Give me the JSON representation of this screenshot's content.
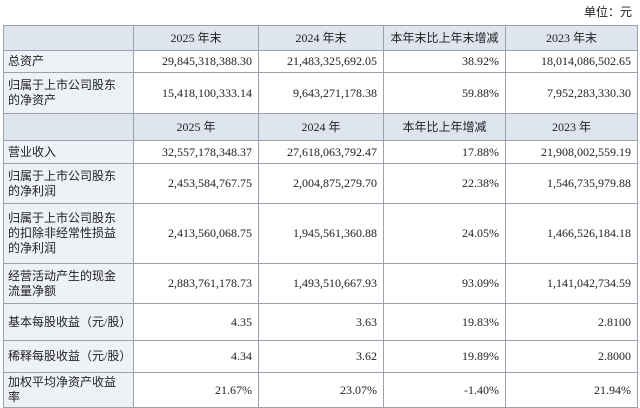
{
  "unit": "单位：元",
  "sections": [
    {
      "header": [
        "2025 年末",
        "2024 年末",
        "本年末比上年末增减",
        "2023 年末"
      ],
      "rows": [
        [
          "总资产",
          "29,845,318,388.30",
          "21,483,325,692.05",
          "38.92%",
          "18,014,086,502.65"
        ],
        [
          "归属于上市公司股东的净资产",
          "15,418,100,333.14",
          "9,643,271,178.38",
          "59.88%",
          "7,952,283,330.30"
        ]
      ]
    },
    {
      "header": [
        "2025 年",
        "2024 年",
        "本年比上年增减",
        "2023 年"
      ],
      "rows": [
        [
          "营业收入",
          "32,557,178,348.37",
          "27,618,063,792.47",
          "17.88%",
          "21,908,002,559.19"
        ],
        [
          "归属于上市公司股东的净利润",
          "2,453,584,767.75",
          "2,004,875,279.70",
          "22.38%",
          "1,546,735,979.88"
        ],
        [
          "归属于上市公司股东的扣除非经常性损益的净利润",
          "2,413,560,068.75",
          "1,945,561,360.88",
          "24.05%",
          "1,466,526,184.18"
        ],
        [
          "经营活动产生的现金流量净额",
          "2,883,761,178.73",
          "1,493,510,667.93",
          "93.09%",
          "1,141,042,734.59"
        ],
        [
          "基本每股收益（元/股）",
          "4.35",
          "3.63",
          "19.83%",
          "2.8100"
        ],
        [
          "稀释每股收益（元/股）",
          "4.34",
          "3.62",
          "19.89%",
          "2.8000"
        ],
        [
          "加权平均净资产收益率",
          "21.67%",
          "23.07%",
          "-1.40%",
          "21.94%"
        ]
      ]
    }
  ]
}
